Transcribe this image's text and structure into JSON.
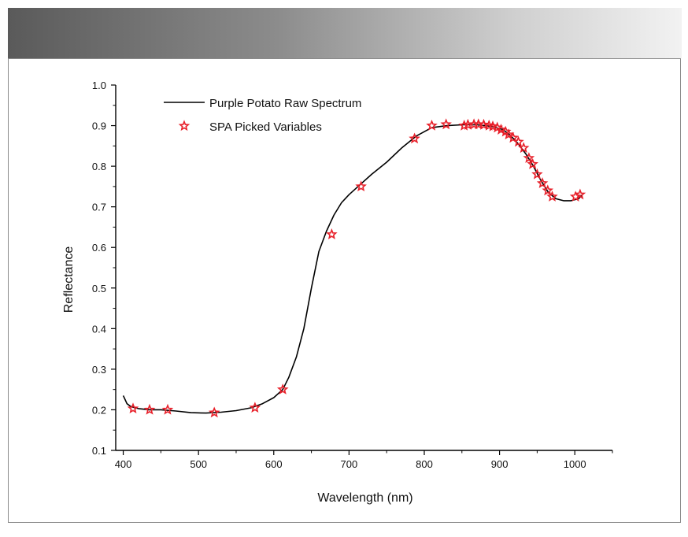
{
  "chart_data": {
    "type": "line",
    "title": "",
    "xlabel": "Wavelength (nm)",
    "ylabel": "Reflectance",
    "xlim": [
      390,
      1050
    ],
    "ylim": [
      0.1,
      1.0
    ],
    "x_ticks": [
      400,
      500,
      600,
      700,
      800,
      900,
      1000
    ],
    "y_ticks": [
      0.1,
      0.2,
      0.3,
      0.4,
      0.5,
      0.6,
      0.7,
      0.8,
      0.9,
      1.0
    ],
    "x_tick_labels": [
      "400",
      "500",
      "600",
      "700",
      "800",
      "900",
      "1000"
    ],
    "y_tick_labels": [
      "0.1",
      "0.2",
      "0.3",
      "0.4",
      "0.5",
      "0.6",
      "0.7",
      "0.8",
      "0.9",
      "1.0"
    ],
    "legend": [
      {
        "label": "Purple Potato Raw Spectrum",
        "style": "line",
        "color": "#000000"
      },
      {
        "label": "SPA Picked Variables",
        "style": "star-marker",
        "color": "#e8202a"
      }
    ],
    "legend_position": "top-left",
    "series": [
      {
        "name": "Purple Potato Raw Spectrum",
        "type": "line",
        "color": "#000000",
        "x": [
          400,
          405,
          410,
          420,
          435,
          450,
          470,
          490,
          510,
          530,
          550,
          570,
          585,
          600,
          612,
          620,
          630,
          640,
          650,
          660,
          670,
          680,
          690,
          700,
          715,
          730,
          750,
          770,
          790,
          810,
          830,
          850,
          870,
          890,
          905,
          915,
          925,
          935,
          945,
          955,
          965,
          975,
          985,
          995,
          1005,
          1010
        ],
        "y": [
          0.235,
          0.215,
          0.208,
          0.203,
          0.2,
          0.2,
          0.197,
          0.193,
          0.192,
          0.194,
          0.198,
          0.205,
          0.215,
          0.23,
          0.25,
          0.28,
          0.33,
          0.4,
          0.5,
          0.59,
          0.64,
          0.68,
          0.71,
          0.73,
          0.755,
          0.78,
          0.81,
          0.845,
          0.875,
          0.895,
          0.9,
          0.902,
          0.902,
          0.898,
          0.89,
          0.875,
          0.855,
          0.83,
          0.8,
          0.765,
          0.735,
          0.72,
          0.715,
          0.715,
          0.72,
          0.73
        ]
      },
      {
        "name": "SPA Picked Variables",
        "type": "scatter",
        "marker": "star",
        "color": "#e8202a",
        "x": [
          413,
          435,
          459,
          521,
          575,
          612,
          677,
          716,
          787,
          810,
          829,
          853,
          858,
          866,
          872,
          879,
          886,
          891,
          897,
          902,
          908,
          912,
          918,
          925,
          932,
          939,
          944,
          950,
          957,
          964,
          970,
          1001,
          1007
        ],
        "y": [
          0.203,
          0.2,
          0.2,
          0.193,
          0.205,
          0.25,
          0.632,
          0.75,
          0.868,
          0.9,
          0.903,
          0.9,
          0.902,
          0.903,
          0.903,
          0.902,
          0.9,
          0.898,
          0.895,
          0.89,
          0.885,
          0.878,
          0.87,
          0.86,
          0.845,
          0.82,
          0.805,
          0.78,
          0.758,
          0.74,
          0.725,
          0.725,
          0.73
        ]
      }
    ]
  }
}
